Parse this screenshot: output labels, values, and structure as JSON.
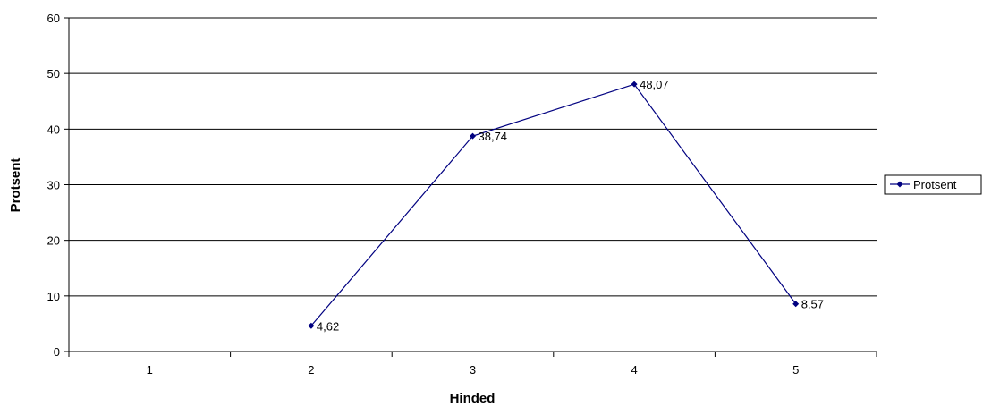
{
  "chart_data": {
    "type": "line",
    "categories": [
      "1",
      "2",
      "3",
      "4",
      "5"
    ],
    "series": [
      {
        "name": "Protsent",
        "values": [
          null,
          4.62,
          38.74,
          48.07,
          8.57
        ],
        "labels": [
          "",
          "4,62",
          "38,74",
          "48,07",
          "8,57"
        ],
        "color": "#000080"
      }
    ],
    "xlabel": "Hinded",
    "ylabel": "Protsent",
    "ylim": [
      0,
      60
    ],
    "yticks": [
      "0",
      "10",
      "20",
      "30",
      "40",
      "50",
      "60"
    ],
    "grid": true,
    "legend_position": "right"
  }
}
